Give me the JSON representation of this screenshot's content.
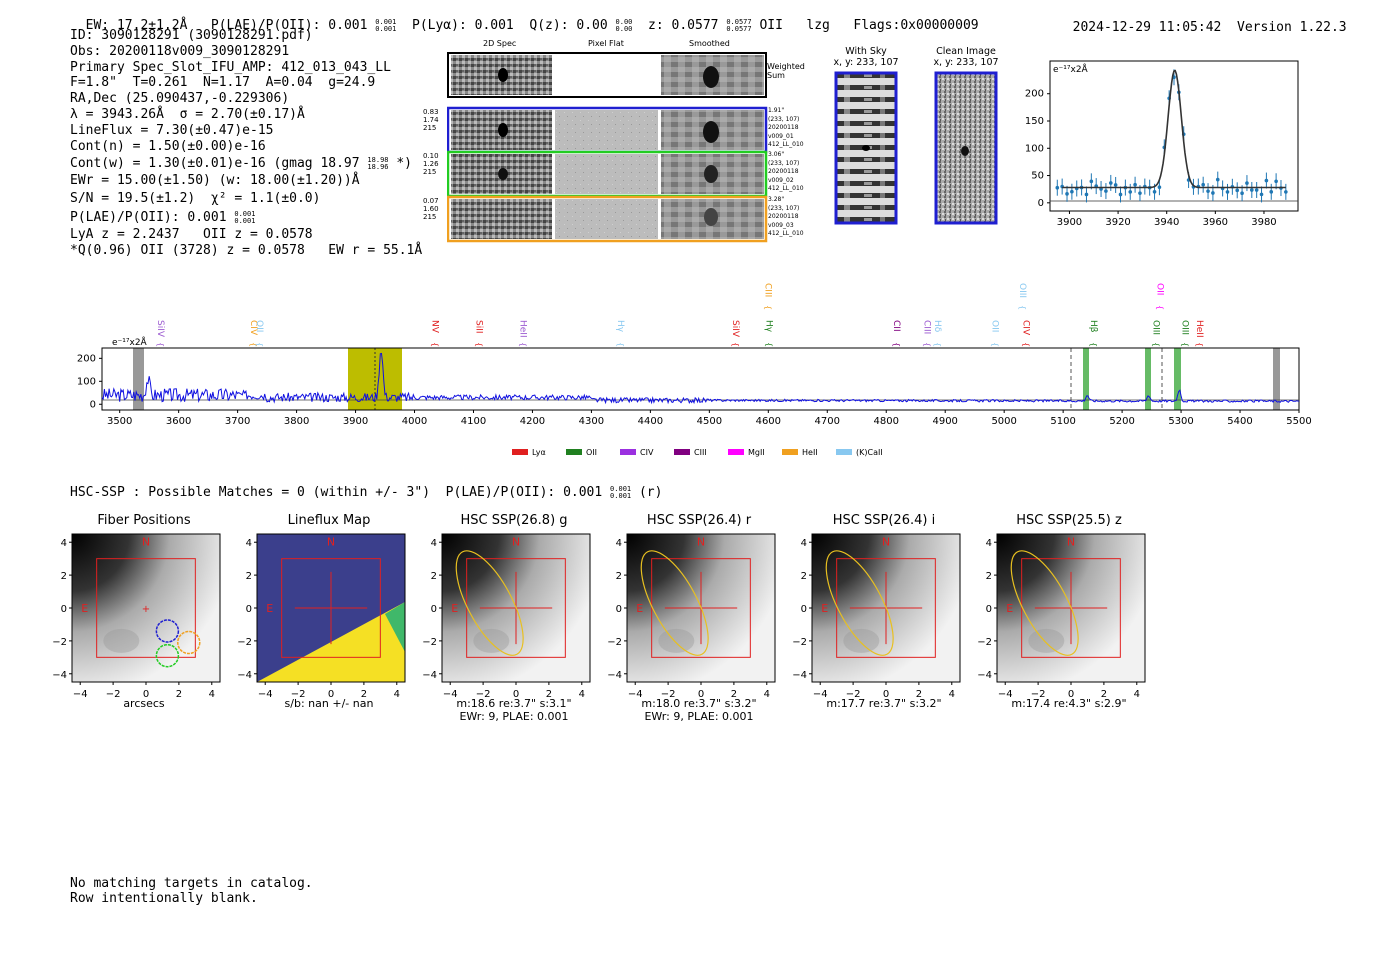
{
  "header": {
    "ew": "EW: 17.2±1.2Å",
    "plae": "P(LAE)/P(OII): 0.001",
    "plae_hi": "0.001",
    "plae_lo": "0.001",
    "plya": "P(Lyα): 0.001",
    "qz": "Q(z): 0.00",
    "qz_hi": "0.00",
    "qz_lo": "0.00",
    "z": "z: 0.0577",
    "z_hi": "0.0577",
    "z_lo": "0.0577",
    "line": "OII",
    "lzg": "lzg",
    "flags": "Flags:0x00000009",
    "timestamp": "2024-12-29 11:05:42",
    "version": "Version 1.22.3"
  },
  "info": {
    "id": "ID: 3090128291 (3090128291.pdf)",
    "obs": "Obs: 20200118v009_3090128291",
    "slot": "Primary Spec_Slot_IFU_AMP: 412_013_043_LL",
    "params": "F=1.8\"  T=0.261  N=1.17  A=0.04  g=24.9",
    "radec": "RA,Dec (25.090437,-0.229306)",
    "lambda": "λ = 3943.26Å  σ = 2.70(±0.17)Å",
    "lineflux": "LineFlux = 7.30(±0.47)e-15",
    "contn": "Cont(n) = 1.50(±0.00)e-16",
    "contw": "Cont(w) = 1.30(±0.01)e-16 (gmag 18.97",
    "contw_hi": "18.98",
    "contw_lo": "18.96",
    "contw_end": "*)",
    "ewr": "EWr = 15.00(±1.50) (w: 18.00(±1.20))Å",
    "sn": "S/N = 19.5(±1.2)  χ² = 1.1(±0.0)",
    "plae": "P(LAE)/P(OII): 0.001",
    "plae_hi": "0.001",
    "plae_lo": "0.001",
    "lya": "LyA z = 2.2437   OII z = 0.0578",
    "q": "*Q(0.96) OII (3728) z = 0.0578   EW r = 55.1Å"
  },
  "cutouts": {
    "col_2d": "2D Spec",
    "col_flat": "Pixel Flat",
    "col_smooth": "Smoothed",
    "weighted": "Weighted",
    "sum": "Sum",
    "rows": [
      {
        "w1": "0.83",
        "w2": "1.74",
        "w3": "215",
        "r1": "1.91\"",
        "r2": "(233, 107)",
        "r3": "20200118",
        "r4": "v009_01",
        "r5": "412_LL_010",
        "color": "#1f1fd0"
      },
      {
        "w1": "0.10",
        "w2": "1.26",
        "w3": "215",
        "r1": "3.06\"",
        "r2": "(233, 107)",
        "r3": "20200118",
        "r4": "v009_02",
        "r5": "412_LL_010",
        "color": "#22cc22"
      },
      {
        "w1": "0.07",
        "w2": "1.60",
        "w3": "215",
        "r1": "3.28\"",
        "r2": "(233, 107)",
        "r3": "20200118",
        "r4": "v009_03",
        "r5": "412_LL_010",
        "color": "#f0a020"
      }
    ]
  },
  "sky": {
    "with_sky": "With Sky",
    "with_sky_xy": "x, y: 233, 107",
    "clean": "Clean Image",
    "clean_xy": "x, y: 233, 107"
  },
  "zoom_plot": {
    "unit": "e⁻¹⁷x2Å",
    "y_ticks": [
      "0",
      "50",
      "100",
      "150",
      "200"
    ],
    "x_ticks": [
      "3900",
      "3920",
      "3940",
      "3960",
      "3980"
    ]
  },
  "full_spectrum": {
    "unit": "e⁻¹⁷x2Å",
    "y_ticks": [
      "0",
      "100",
      "200"
    ],
    "x_ticks": [
      "3500",
      "3600",
      "3700",
      "3800",
      "3900",
      "4000",
      "4100",
      "4200",
      "4300",
      "4400",
      "4500",
      "4600",
      "4700",
      "4800",
      "4900",
      "5000",
      "5100",
      "5200",
      "5300",
      "5400",
      "5500"
    ],
    "lines": [
      {
        "label": "SiIV",
        "color": "#9b59d0",
        "wl": 3560,
        "row": 1
      },
      {
        "label": "CIV",
        "color": "#f0a020",
        "wl": 3718,
        "row": 1
      },
      {
        "label": "OII",
        "color": "#88c8f0",
        "wl": 3728,
        "row": 1
      },
      {
        "label": "NV",
        "color": "#e02020",
        "wl": 4025,
        "row": 1
      },
      {
        "label": "SiII",
        "color": "#e02020",
        "wl": 4100,
        "row": 1
      },
      {
        "label": "HeII",
        "color": "#9b59d0",
        "wl": 4175,
        "row": 1
      },
      {
        "label": "Hγ",
        "color": "#88c8f0",
        "wl": 4340,
        "row": 1
      },
      {
        "label": "SiIV",
        "color": "#e02020",
        "wl": 4535,
        "row": 1
      },
      {
        "label": "CIII",
        "color": "#f0a020",
        "wl": 4590,
        "row": 0
      },
      {
        "label": "Hγ",
        "color": "#208020",
        "wl": 4592,
        "row": 1
      },
      {
        "label": "CII",
        "color": "#800080",
        "wl": 4808,
        "row": 1
      },
      {
        "label": "CIII",
        "color": "#9b59d0",
        "wl": 4860,
        "row": 1
      },
      {
        "label": "Hδ",
        "color": "#88c8f0",
        "wl": 4878,
        "row": 1
      },
      {
        "label": "OII",
        "color": "#88c8f0",
        "wl": 4975,
        "row": 1
      },
      {
        "label": "OIII",
        "color": "#88c8f0",
        "wl": 5022,
        "row": 0
      },
      {
        "label": "CIV",
        "color": "#e02020",
        "wl": 5028,
        "row": 1
      },
      {
        "label": "Hβ",
        "color": "#208020",
        "wl": 5142,
        "row": 1
      },
      {
        "label": "OII",
        "color": "#ff00ff",
        "wl": 5255,
        "row": 0
      },
      {
        "label": "OIII",
        "color": "#208020",
        "wl": 5248,
        "row": 1
      },
      {
        "label": "OIII",
        "color": "#208020",
        "wl": 5297,
        "row": 1
      },
      {
        "label": "HeII",
        "color": "#e02020",
        "wl": 5322,
        "row": 1
      }
    ],
    "legend": [
      {
        "label": "Lyα",
        "color": "#e02020"
      },
      {
        "label": "OII",
        "color": "#208020"
      },
      {
        "label": "CIV",
        "color": "#9b30e0"
      },
      {
        "label": "CIII",
        "color": "#800080"
      },
      {
        "label": "MgII",
        "color": "#ff00ff"
      },
      {
        "label": "HeII",
        "color": "#f0a020"
      },
      {
        "label": "(K)CaII",
        "color": "#88c8f0"
      }
    ]
  },
  "hsc": {
    "summary": "HSC-SSP : Possible Matches = 0 (within +/- 3\")  P(LAE)/P(OII): 0.001",
    "summary_hi": "0.001",
    "summary_lo": "0.001",
    "summary_band": "(r)",
    "panels": [
      {
        "title": "Fiber Positions",
        "kind": "fiber",
        "cap1": "arcsecs",
        "cap2": ""
      },
      {
        "title": "Lineflux Map",
        "kind": "lineflux",
        "cap1": "s/b: nan +/- nan",
        "cap2": ""
      },
      {
        "title": "HSC SSP(26.8) g",
        "kind": "hsc",
        "cap1": "m:18.6  re:3.7\"  s:3.1\"",
        "cap2": "EWr: 9, PLAE: 0.001"
      },
      {
        "title": "HSC SSP(26.4) r",
        "kind": "hsc",
        "cap1": "m:18.0  re:3.7\"  s:3.2\"",
        "cap2": "EWr: 9, PLAE: 0.001"
      },
      {
        "title": "HSC SSP(26.4) i",
        "kind": "hsc",
        "cap1": "m:17.7  re:3.7\"  s:3.2\"",
        "cap2": ""
      },
      {
        "title": "HSC SSP(25.5) z",
        "kind": "hsc",
        "cap1": "m:17.4  re:4.3\"  s:2.9\"",
        "cap2": ""
      }
    ],
    "ticks": [
      "4",
      "2",
      "0",
      "−2",
      "−4"
    ],
    "xticks": [
      "−4",
      "−2",
      "0",
      "2",
      "4"
    ],
    "n": "N",
    "e": "E"
  },
  "footer": {
    "line1": "No matching targets in catalog.",
    "line2": "Row intentionally blank."
  }
}
